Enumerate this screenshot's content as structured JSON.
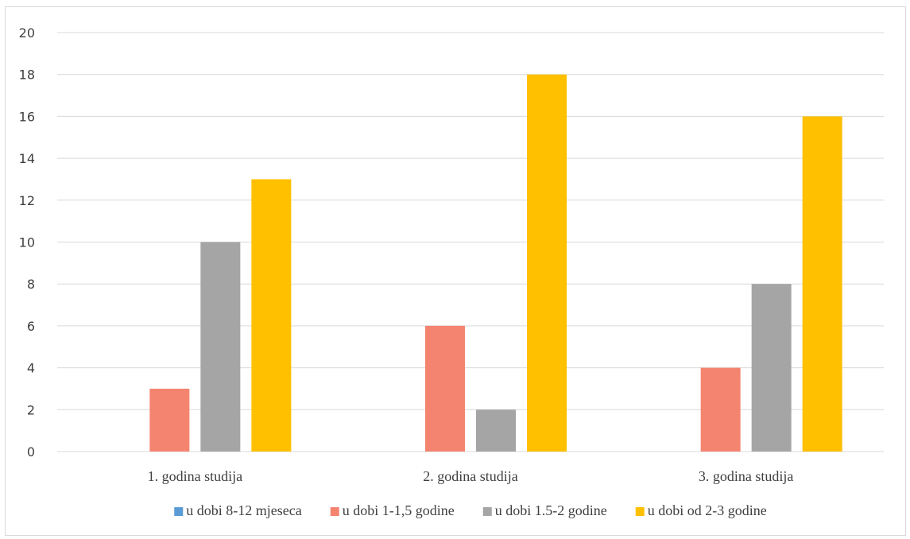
{
  "chart_data": {
    "type": "bar",
    "categories": [
      "1. godina studija",
      "2. godina studija",
      "3. godina studija"
    ],
    "series": [
      {
        "name": "u dobi 8-12 mjeseca",
        "color": "#5b9bd5",
        "values": [
          0,
          0,
          0
        ]
      },
      {
        "name": "u dobi 1-1,5 godine",
        "color": "#f4846f",
        "values": [
          3,
          6,
          4
        ]
      },
      {
        "name": "u dobi 1.5-2 godine",
        "color": "#a5a5a5",
        "values": [
          10,
          2,
          8
        ]
      },
      {
        "name": "u dobi od 2-3 godine",
        "color": "#ffc000",
        "values": [
          13,
          18,
          16
        ]
      }
    ],
    "ylim": [
      0,
      20
    ],
    "yticks": [
      0,
      2,
      4,
      6,
      8,
      10,
      12,
      14,
      16,
      18,
      20
    ],
    "grid": true,
    "legend": "bottom",
    "gridline_color": "#d9d9d9"
  }
}
